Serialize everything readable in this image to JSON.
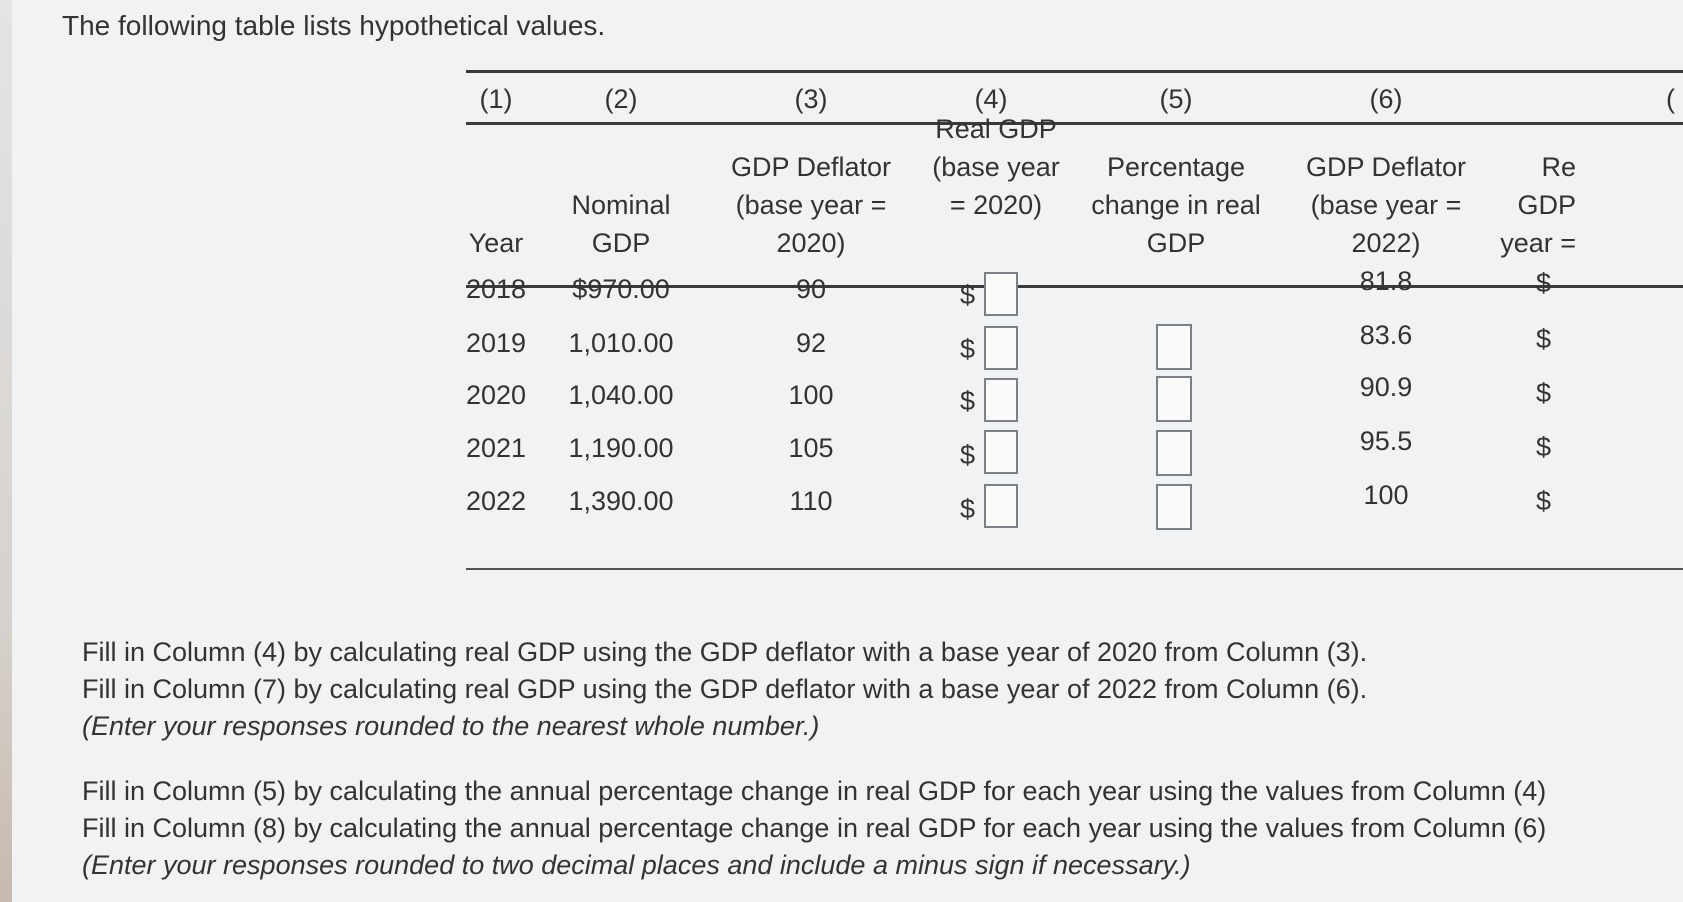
{
  "intro": "The following table lists hypothetical values.",
  "table": {
    "column_numbers": [
      "(1)",
      "(2)",
      "(3)",
      "(4)",
      "(5)",
      "(6)",
      "("
    ],
    "headers": {
      "c1": "Year",
      "c2": "Nominal GDP",
      "c3": "GDP Deflator (base year = 2020)",
      "c4": "Real GDP (base year = 2020)",
      "c5": "Percentage change in real GDP",
      "c6": "GDP Deflator (base year = 2022)",
      "c7": "Re GDP year ="
    },
    "dollar_sign": "$",
    "rows": [
      {
        "year": "2018",
        "nominal": "$970.00",
        "deflator2020": "90",
        "deflator2022": "81.8"
      },
      {
        "year": "2019",
        "nominal": "1,010.00",
        "deflator2020": "92",
        "deflator2022": "83.6"
      },
      {
        "year": "2020",
        "nominal": "1,040.00",
        "deflator2020": "100",
        "deflator2022": "90.9"
      },
      {
        "year": "2021",
        "nominal": "1,190.00",
        "deflator2020": "105",
        "deflator2022": "95.5"
      },
      {
        "year": "2022",
        "nominal": "1,390.00",
        "deflator2020": "110",
        "deflator2022": "100"
      }
    ]
  },
  "instructions": {
    "line1": "Fill in Column (4) by calculating real GDP using the GDP deflator with a base year of 2020 from Column (3).",
    "line2": "Fill in Column (7) by calculating real GDP using the GDP deflator with a base year of 2022 from Column (6).",
    "line3": "(Enter your responses rounded to the nearest whole number.)",
    "line4": "Fill in Column (5) by calculating the annual percentage change in real GDP for each year using the values from Column (4)",
    "line5": "Fill in Column (8) by calculating the annual percentage change in real GDP for each year using the values from Column (6)",
    "line6": "(Enter your responses rounded to two decimal places and include a minus sign if necessary.)"
  }
}
